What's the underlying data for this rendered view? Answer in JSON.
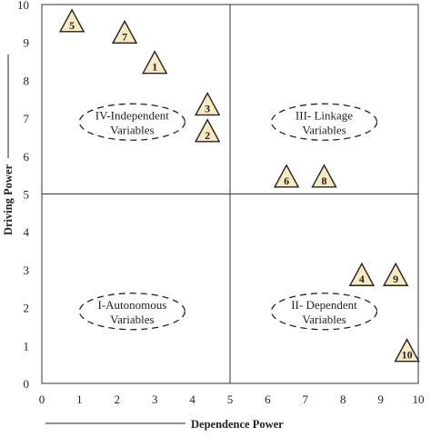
{
  "chart_data": {
    "type": "scatter",
    "xlabel": "Dependence Power",
    "ylabel": "Driving Power",
    "xlim": [
      0,
      10
    ],
    "ylim": [
      0,
      10
    ],
    "x_ticks": [
      0,
      1,
      2,
      3,
      4,
      5,
      6,
      7,
      8,
      9,
      10
    ],
    "y_ticks": [
      0,
      1,
      2,
      3,
      4,
      5,
      6,
      7,
      8,
      9,
      10
    ],
    "divider": {
      "x": 5,
      "y": 5
    },
    "grid": false,
    "marker_style": {
      "shape": "triangle",
      "fill": "#f7e9c0",
      "stroke": "#222222"
    },
    "points": [
      {
        "label": "1",
        "x": 3.0,
        "y": 8.4
      },
      {
        "label": "2",
        "x": 4.4,
        "y": 6.6
      },
      {
        "label": "3",
        "x": 4.4,
        "y": 7.3
      },
      {
        "label": "4",
        "x": 8.5,
        "y": 2.8
      },
      {
        "label": "5",
        "x": 0.8,
        "y": 9.5
      },
      {
        "label": "6",
        "x": 6.5,
        "y": 5.4
      },
      {
        "label": "7",
        "x": 2.2,
        "y": 9.2
      },
      {
        "label": "8",
        "x": 7.5,
        "y": 5.4
      },
      {
        "label": "9",
        "x": 9.4,
        "y": 2.8
      },
      {
        "label": "10",
        "x": 9.7,
        "y": 0.8
      }
    ],
    "regions": [
      {
        "id": "independent",
        "line1": "IV-Independent",
        "line2": "Variables",
        "x": 2.4,
        "y": 6.9
      },
      {
        "id": "linkage",
        "line1": "III- Linkage",
        "line2": "Variables",
        "x": 7.5,
        "y": 6.9
      },
      {
        "id": "autonomous",
        "line1": "I-Autonomous",
        "line2": "Variables",
        "x": 2.4,
        "y": 1.9
      },
      {
        "id": "dependent",
        "line1": "II- Dependent",
        "line2": "Variables",
        "x": 7.5,
        "y": 1.9
      }
    ]
  }
}
